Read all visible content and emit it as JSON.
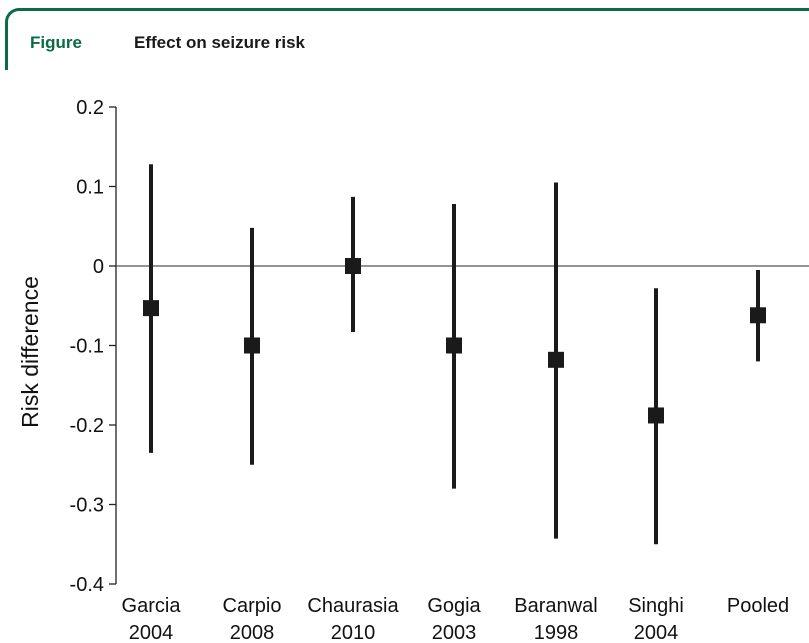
{
  "header": {
    "label": "Figure",
    "title": "Effect on seizure risk"
  },
  "colors": {
    "accent": "#0b6b45",
    "marker": "#1a1a1a"
  },
  "chart_data": {
    "type": "scatter",
    "title": "Effect on seizure risk",
    "xlabel": "",
    "ylabel": "Risk difference",
    "ylim": [
      -0.4,
      0.2
    ],
    "yticks": [
      0.2,
      0.1,
      0,
      -0.1,
      -0.2,
      -0.3,
      -0.4
    ],
    "ytick_labels": [
      "0.2",
      "0.1",
      "0",
      "-0.1",
      "-0.2",
      "-0.3",
      "-0.4"
    ],
    "reference_line": 0,
    "grid": false,
    "categories": [
      {
        "line1": "Garcia",
        "line2": "2004"
      },
      {
        "line1": "Carpio",
        "line2": "2008"
      },
      {
        "line1": "Chaurasia",
        "line2": "2010"
      },
      {
        "line1": "Gogia",
        "line2": "2003"
      },
      {
        "line1": "Baranwal",
        "line2": "1998"
      },
      {
        "line1": "Singhi",
        "line2": "2004"
      },
      {
        "line1": "Pooled",
        "line2": ""
      }
    ],
    "estimates": [
      -0.053,
      -0.1,
      0.0,
      -0.1,
      -0.118,
      -0.188,
      -0.062
    ],
    "ci_lower": [
      -0.235,
      -0.25,
      -0.083,
      -0.28,
      -0.343,
      -0.35,
      -0.12
    ],
    "ci_upper": [
      0.128,
      0.048,
      0.087,
      0.078,
      0.105,
      -0.028,
      -0.005
    ]
  }
}
